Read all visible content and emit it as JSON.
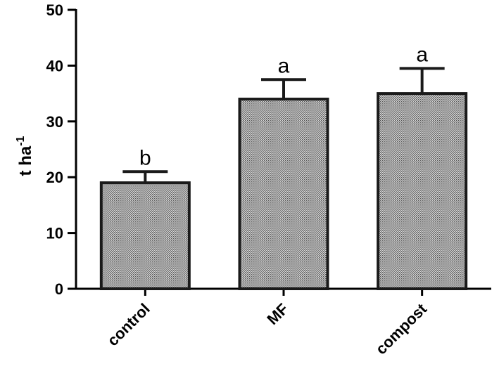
{
  "chart_data": {
    "type": "bar",
    "categories": [
      "control",
      "MF",
      "compost"
    ],
    "values": [
      19,
      34,
      35
    ],
    "errors": [
      2,
      3.5,
      4.5
    ],
    "significance": [
      "b",
      "a",
      "a"
    ],
    "ylabel": {
      "main": "t ha",
      "superscript": "-1"
    },
    "ylim": [
      0,
      50
    ],
    "yticks": [
      0,
      10,
      20,
      30,
      40,
      50
    ],
    "grid": false,
    "bar_fill": "#a8a8a8",
    "bar_stroke": "#1a1a1a"
  }
}
